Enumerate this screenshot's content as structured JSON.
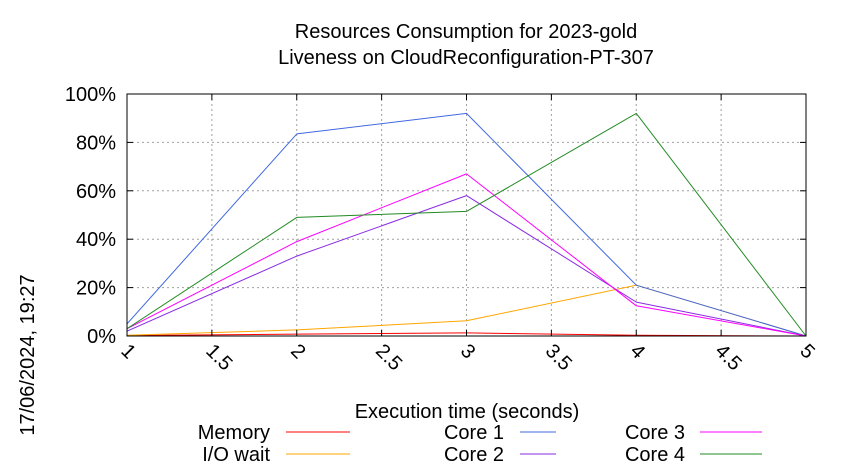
{
  "chart_data": {
    "type": "line",
    "title": [
      "Resources Consumption for 2023-gold",
      "Liveness on CloudReconfiguration-PT-307"
    ],
    "xlabel": "Execution time (seconds)",
    "ylabel": "",
    "timestamp": "17/06/2024, 19:27",
    "xlim": [
      1,
      5
    ],
    "ylim": [
      0,
      100
    ],
    "xticks": [
      1,
      1.5,
      2,
      2.5,
      3,
      3.5,
      4,
      4.5,
      5
    ],
    "xtick_labels": [
      "1",
      "1.5",
      "2",
      "2.5",
      "3",
      "3.5",
      "4",
      "4.5",
      "5"
    ],
    "yticks": [
      0,
      20,
      40,
      60,
      80,
      100
    ],
    "ytick_labels": [
      "0%",
      "20%",
      "40%",
      "60%",
      "80%",
      "100%"
    ],
    "grid": true,
    "legend_position": "bottom",
    "x": [
      1,
      2,
      3,
      4,
      5
    ],
    "series": [
      {
        "name": "Memory",
        "color": "#ff0000",
        "values": [
          0.2,
          0.8,
          1.3,
          0.3,
          0
        ]
      },
      {
        "name": "I/O wait",
        "color": "#ffa500",
        "values": [
          0.3,
          2.5,
          6.3,
          21,
          0
        ]
      },
      {
        "name": "Core 1",
        "color": "#4169e1",
        "values": [
          5,
          83.5,
          92,
          21,
          0
        ]
      },
      {
        "name": "Core 2",
        "color": "#8a2be2",
        "values": [
          2,
          33,
          58,
          14,
          0
        ]
      },
      {
        "name": "Core 3",
        "color": "#ff00ff",
        "values": [
          3,
          39,
          67,
          12.5,
          0
        ]
      },
      {
        "name": "Core 4",
        "color": "#228b22",
        "values": [
          3,
          49,
          51.5,
          92,
          0
        ]
      }
    ]
  }
}
